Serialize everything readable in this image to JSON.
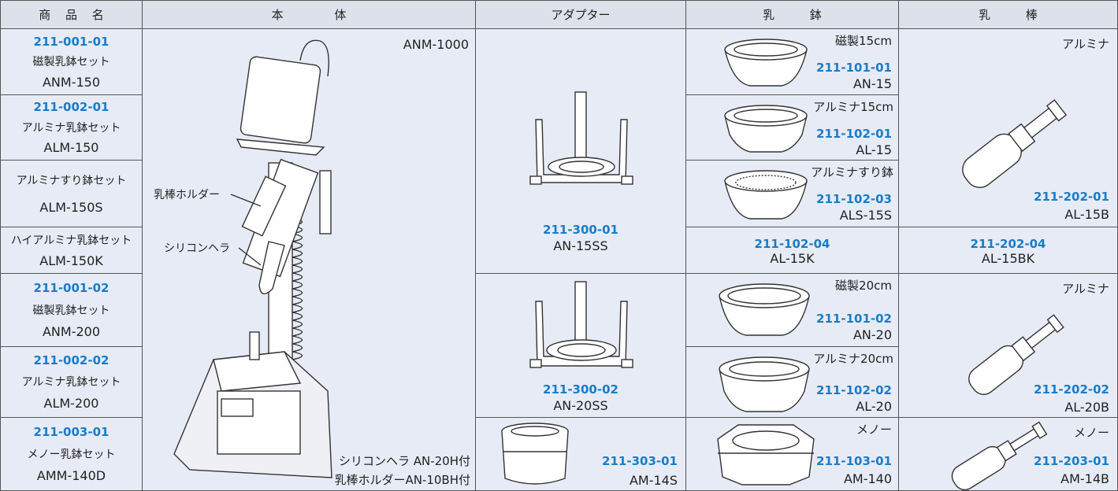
{
  "header": [
    "商 品 名",
    "本 体",
    "アダプター",
    "乳 鉢",
    "乳 棒"
  ],
  "products": [
    {
      "code": "211-001-01",
      "name": "磁製乳鉢セット",
      "model": "ANM-150"
    },
    {
      "code": "211-002-01",
      "name": "アルミナ乳鉢セット",
      "model": "ALM-150"
    },
    {
      "name": "アルミナすり鉢セット",
      "model": "ALM-150S"
    },
    {
      "name": "ハイアルミナ乳鉢セット",
      "model": "ALM-150K"
    },
    {
      "code": "211-001-02",
      "name": "磁製乳鉢セット",
      "model": "ANM-200"
    },
    {
      "code": "211-002-02",
      "name": "アルミナ乳鉢セット",
      "model": "ALM-200"
    },
    {
      "code": "211-003-01",
      "name": "メノー乳鉢セット",
      "model": "AMM-140D"
    }
  ],
  "body": {
    "model": "ANM-1000",
    "labels": [
      "乳棒ホルダー",
      "シリコンヘラ"
    ],
    "notes": [
      "シリコンヘラ AN-20H付",
      "乳棒ホルダーAN-10BH付"
    ]
  },
  "adapters": [
    {
      "code": "211-300-01",
      "model": "AN-15SS"
    },
    {
      "code": "211-300-02",
      "model": "AN-20SS"
    },
    {
      "code": "211-303-01",
      "model": "AM-14S"
    }
  ],
  "mortars": [
    {
      "material": "磁製15cm",
      "code": "211-101-01",
      "model": "AN-15"
    },
    {
      "material": "アルミナ15cm",
      "code": "211-102-01",
      "model": "AL-15"
    },
    {
      "material": "アルミナすり鉢",
      "code": "211-102-03",
      "model": "ALS-15S"
    },
    {
      "code": "211-102-04",
      "model": "AL-15K"
    },
    {
      "material": "磁製20cm",
      "code": "211-101-02",
      "model": "AN-20"
    },
    {
      "material": "アルミナ20cm",
      "code": "211-102-02",
      "model": "AL-20"
    },
    {
      "material": "メノー",
      "code": "211-103-01",
      "model": "AM-140"
    }
  ],
  "pestles": [
    {
      "material": "アルミナ",
      "code": "211-202-01",
      "model": "AL-15B"
    },
    {
      "code": "211-202-04",
      "model": "AL-15BK"
    },
    {
      "material": "アルミナ",
      "code": "211-202-02",
      "model": "AL-20B"
    },
    {
      "material": "メノー",
      "code": "211-203-01",
      "model": "AM-14B"
    }
  ]
}
